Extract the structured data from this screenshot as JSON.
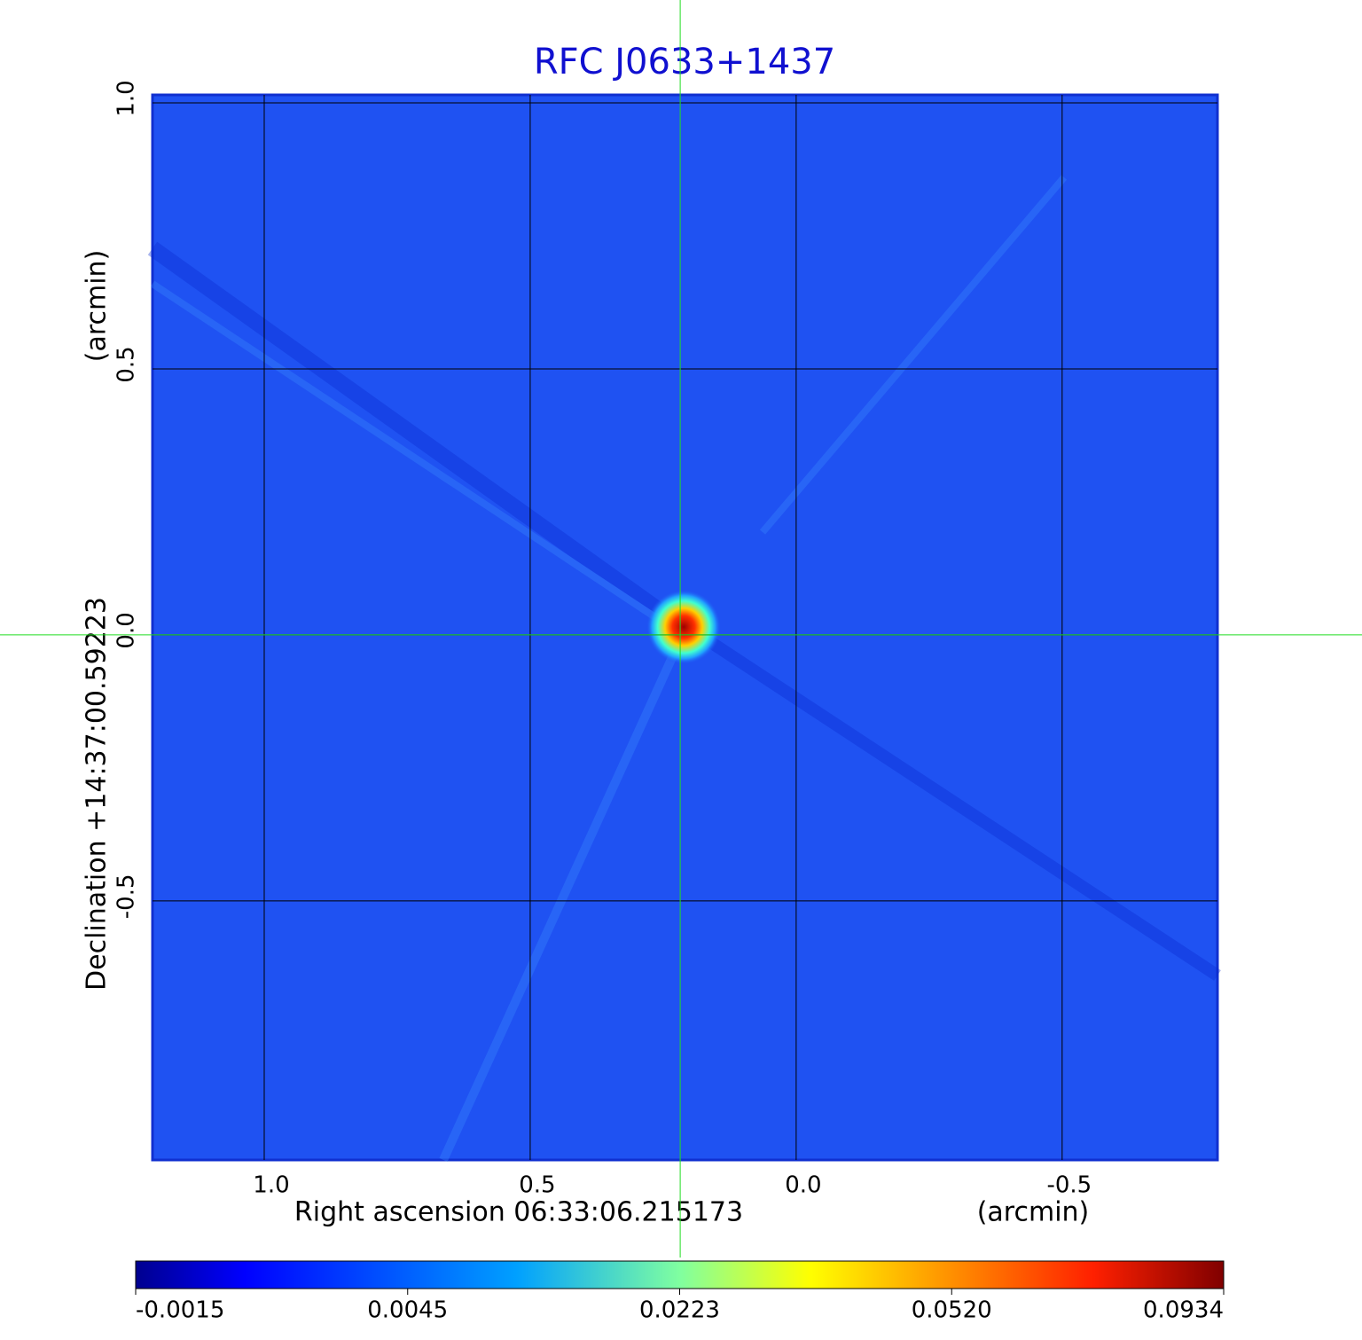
{
  "chart_data": {
    "type": "image",
    "title": "RFC J0633+1437",
    "x_label": "Right ascension  06:33:06.215173",
    "x_unit_label": "(arcmin)",
    "y_label": "Declination  +14:37:00.59223",
    "y_unit_label": "(arcmin)",
    "xlim": [
      1.21,
      -0.792
    ],
    "ylim": [
      -0.987,
      1.015
    ],
    "xticks": [
      {
        "value": 1,
        "label": "1.0"
      },
      0.5,
      {
        "value": 0,
        "label": "0.0"
      },
      -0.5
    ],
    "yticks": [
      {
        "value": 1,
        "label": "1.0"
      },
      0.5,
      {
        "value": 0,
        "label": "0.0"
      },
      -0.5
    ],
    "grid": true,
    "crosshair": {
      "x": 0.218,
      "y": 0.0,
      "color": "#22dd22"
    },
    "colorbar": {
      "ticks": [
        -0.0015,
        0.0045,
        0.0223,
        {
          "value": 0.052,
          "label": "0.0520"
        },
        0.0934
      ]
    }
  }
}
